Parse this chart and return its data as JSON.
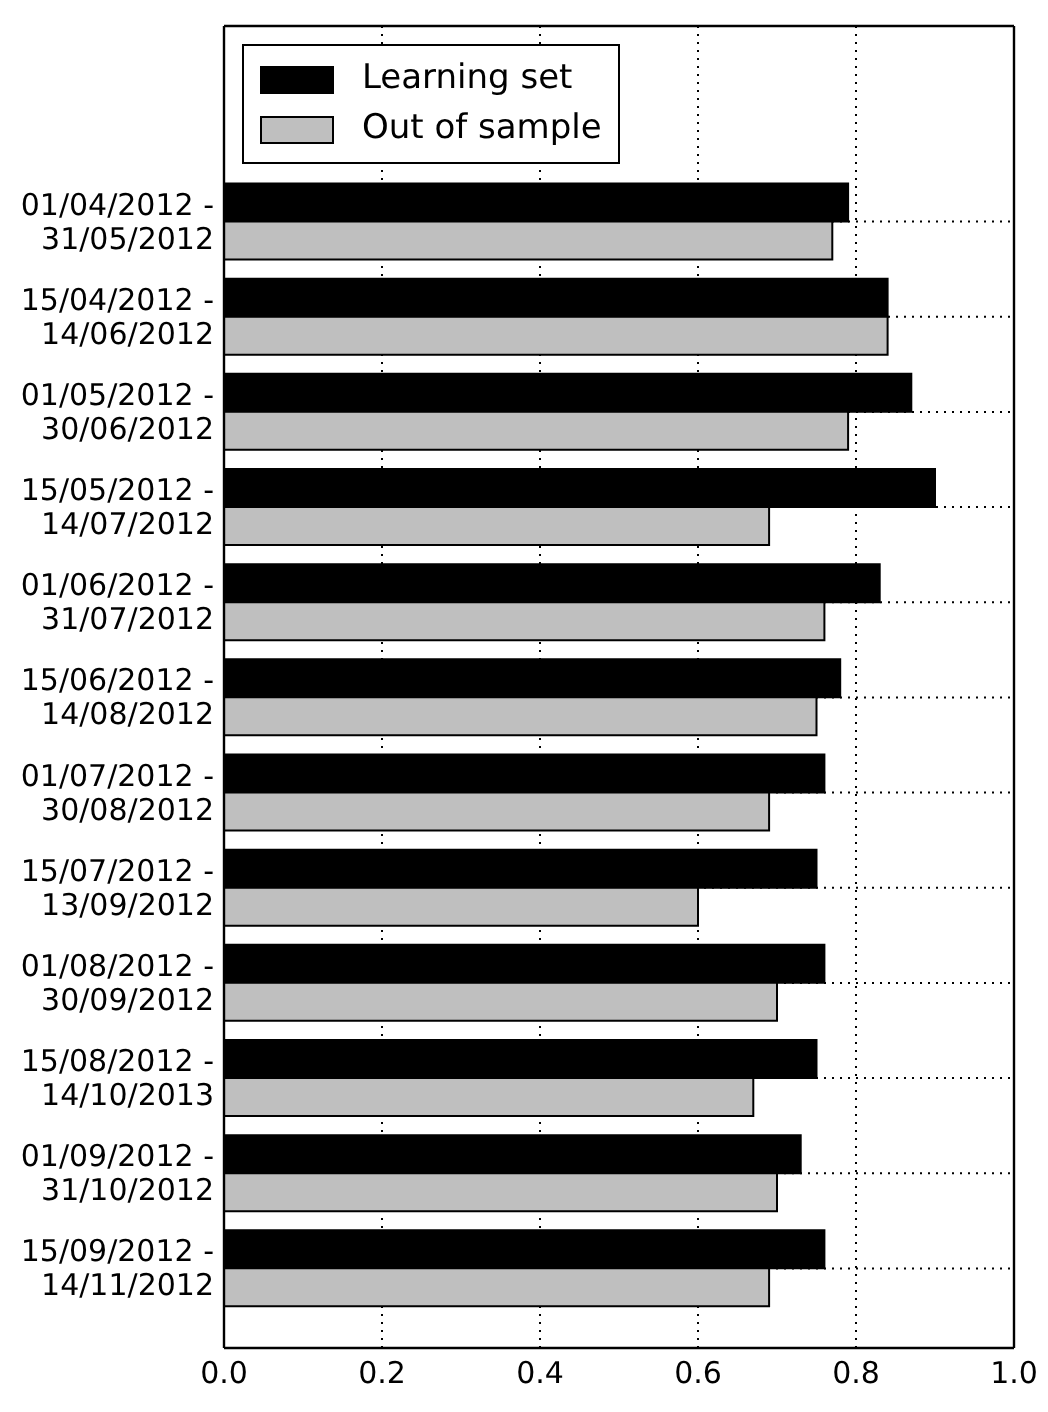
{
  "chart_data": {
    "type": "bar",
    "orientation": "horizontal",
    "categories": [
      "01/04/2012 -\n31/05/2012",
      "15/04/2012 -\n14/06/2012",
      "01/05/2012 -\n30/06/2012",
      "15/05/2012 -\n14/07/2012",
      "01/06/2012 -\n31/07/2012",
      "15/06/2012 -\n14/08/2012",
      "01/07/2012 -\n30/08/2012",
      "15/07/2012 -\n13/09/2012",
      "01/08/2012 -\n30/09/2012",
      "15/08/2012 -\n14/10/2013",
      "01/09/2012 -\n31/10/2012",
      "15/09/2012 -\n14/11/2012"
    ],
    "series": [
      {
        "name": "Learning set",
        "color": "#000000",
        "values": [
          0.79,
          0.84,
          0.87,
          0.9,
          0.83,
          0.78,
          0.76,
          0.75,
          0.76,
          0.75,
          0.73,
          0.76
        ]
      },
      {
        "name": "Out of sample",
        "color": "#bfbfbf",
        "values": [
          0.77,
          0.84,
          0.79,
          0.69,
          0.76,
          0.75,
          0.69,
          0.6,
          0.7,
          0.67,
          0.7,
          0.69
        ]
      }
    ],
    "xlim": [
      0,
      1
    ],
    "xticks": [
      {
        "value": 0,
        "label": "0.0"
      },
      0.2,
      0.4,
      0.6,
      0.8,
      {
        "value": 1,
        "label": "1.0"
      }
    ],
    "grid": true,
    "legend": "top left"
  }
}
